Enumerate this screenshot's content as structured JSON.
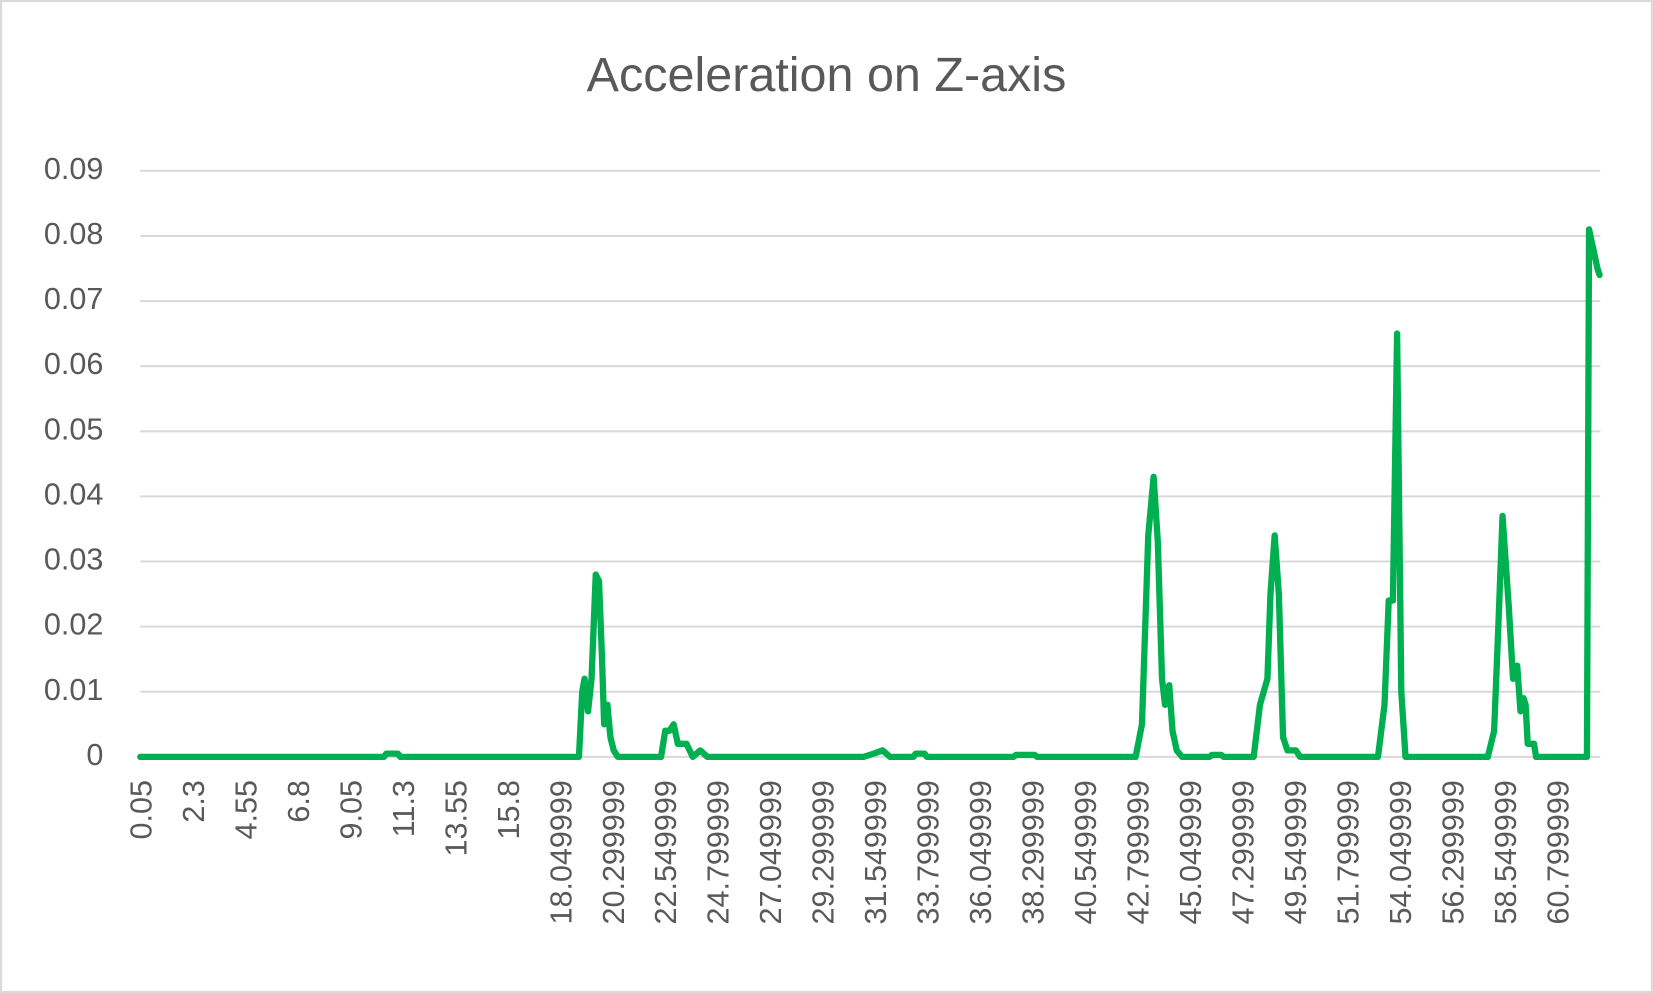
{
  "chart_data": {
    "type": "line",
    "title": "Acceleration on Z-axis",
    "x": [
      0.05,
      10.5,
      10.6,
      11.1,
      11.2,
      18.86,
      19.0,
      19.1,
      19.25,
      19.4,
      19.58,
      19.72,
      19.85,
      19.94,
      20.08,
      20.21,
      20.35,
      20.53,
      22.38,
      22.56,
      22.74,
      22.92,
      23.1,
      23.47,
      23.74,
      24.06,
      24.37,
      31.06,
      31.5,
      31.88,
      32.2,
      33.2,
      33.3,
      33.68,
      33.78,
      37.5,
      37.6,
      38.4,
      38.5,
      42.73,
      43.0,
      43.27,
      43.5,
      43.68,
      43.86,
      43.99,
      44.17,
      44.31,
      44.49,
      44.72,
      45.9,
      46.0,
      46.4,
      46.5,
      47.79,
      48.06,
      48.38,
      48.51,
      48.69,
      48.87,
      49.05,
      49.24,
      49.6,
      49.78,
      53.12,
      53.4,
      53.58,
      53.76,
      53.94,
      54.12,
      54.3,
      57.83,
      58.1,
      58.28,
      58.46,
      58.73,
      58.91,
      59.09,
      59.23,
      59.36,
      59.45,
      59.54,
      59.81,
      59.9,
      62.08,
      62.17,
      62.35,
      62.53,
      62.62
    ],
    "series": [
      {
        "name": "Acceleration on Z-axis",
        "color": "#00b050",
        "values": [
          0,
          0,
          0.0005,
          0.0005,
          0,
          0,
          0.01,
          0.012,
          0.007,
          0.012,
          0.028,
          0.027,
          0.015,
          0.005,
          0.008,
          0.003,
          0.001,
          0,
          0,
          0.004,
          0.004,
          0.005,
          0.002,
          0.002,
          0,
          0.001,
          0,
          0,
          0.0005,
          0.001,
          0,
          0,
          0.0005,
          0.0005,
          0,
          0,
          0.0003,
          0.0003,
          0,
          0,
          0.005,
          0.034,
          0.043,
          0.033,
          0.012,
          0.008,
          0.011,
          0.004,
          0.001,
          0,
          0,
          0.0003,
          0.0003,
          0,
          0,
          0.008,
          0.012,
          0.025,
          0.034,
          0.025,
          0.003,
          0.001,
          0.001,
          0,
          0,
          0.008,
          0.024,
          0.024,
          0.065,
          0.01,
          0,
          0,
          0.004,
          0.02,
          0.037,
          0.023,
          0.012,
          0.014,
          0.007,
          0.009,
          0.008,
          0.002,
          0.002,
          0,
          0,
          0.081,
          0.078,
          0.075,
          0.074
        ]
      }
    ],
    "xlim": [
      0.05,
      62.65
    ],
    "xticks": [
      0.05,
      2.3,
      4.55,
      6.8,
      9.05,
      11.3,
      13.55,
      15.8,
      18.049999,
      20.299999,
      22.549999,
      24.799999,
      27.049999,
      29.299999,
      31.549999,
      33.799999,
      36.049999,
      38.299999,
      40.549999,
      42.799999,
      45.049999,
      47.299999,
      49.549999,
      51.799999,
      54.049999,
      56.299999,
      58.549999,
      60.799999
    ],
    "ylim": [
      0,
      0.09
    ],
    "yticks": [
      0,
      0.01,
      0.02,
      0.03,
      0.04,
      0.05,
      0.06,
      0.07,
      0.08,
      0.09
    ],
    "grid": true
  }
}
